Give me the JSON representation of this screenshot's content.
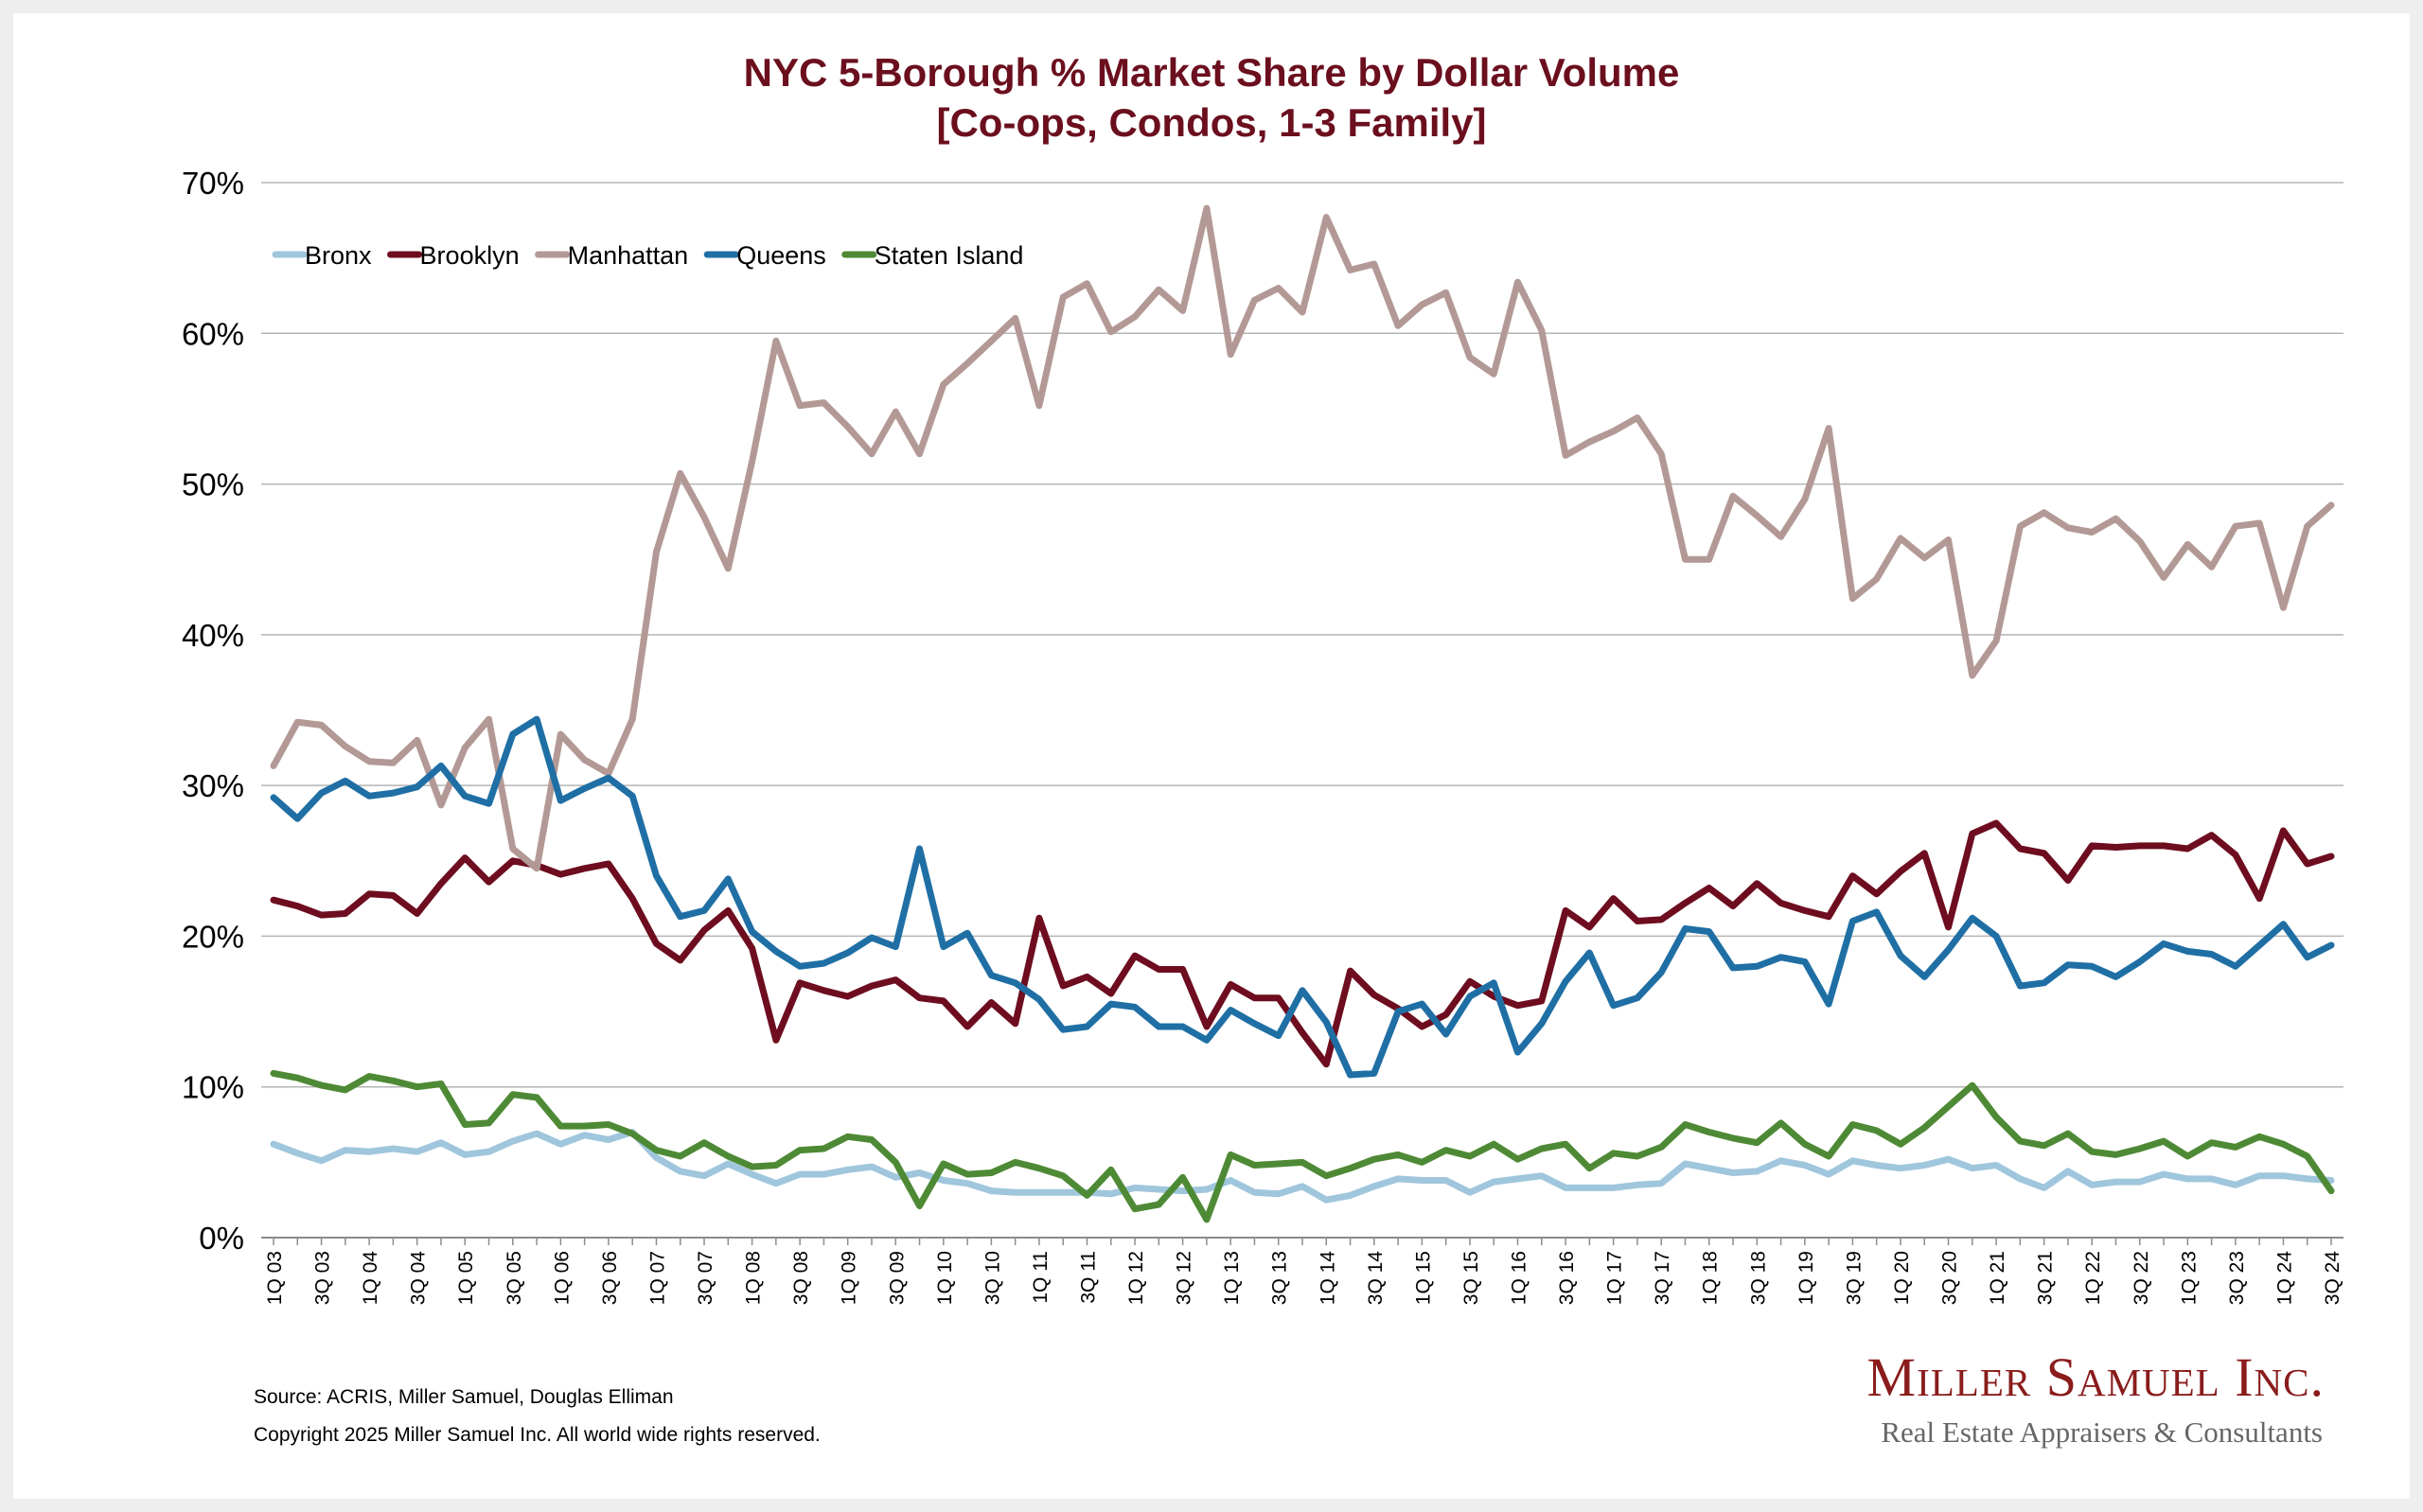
{
  "chart_data": {
    "type": "line",
    "title": [
      "NYC 5-Borough % Market Share by Dollar Volume",
      "[Co-ops, Condos, 1-3 Family]"
    ],
    "ylim": [
      0,
      70
    ],
    "yticks": [
      "0%",
      "10%",
      "20%",
      "30%",
      "40%",
      "50%",
      "60%",
      "70%"
    ],
    "grid": true,
    "legend_position": "top-left",
    "x": [
      "1Q 03",
      "2Q 03",
      "3Q 03",
      "4Q 03",
      "1Q 04",
      "2Q 04",
      "3Q 04",
      "4Q 04",
      "1Q 05",
      "2Q 05",
      "3Q 05",
      "4Q 05",
      "1Q 06",
      "2Q 06",
      "3Q 06",
      "4Q 06",
      "1Q 07",
      "2Q 07",
      "3Q 07",
      "4Q 07",
      "1Q 08",
      "2Q 08",
      "3Q 08",
      "4Q 08",
      "1Q 09",
      "2Q 09",
      "3Q 09",
      "4Q 09",
      "1Q 10",
      "2Q 10",
      "3Q 10",
      "4Q 10",
      "1Q 11",
      "2Q 11",
      "3Q 11",
      "4Q 11",
      "1Q 12",
      "2Q 12",
      "3Q 12",
      "4Q 12",
      "1Q 13",
      "2Q 13",
      "3Q 13",
      "4Q 13",
      "1Q 14",
      "2Q 14",
      "3Q 14",
      "4Q 14",
      "1Q 15",
      "2Q 15",
      "3Q 15",
      "4Q 15",
      "1Q 16",
      "2Q 16",
      "3Q 16",
      "4Q 16",
      "1Q 17",
      "2Q 17",
      "3Q 17",
      "4Q 17",
      "1Q 18",
      "2Q 18",
      "3Q 18",
      "4Q 18",
      "1Q 19",
      "2Q 19",
      "3Q 19",
      "4Q 19",
      "1Q 20",
      "2Q 20",
      "3Q 20",
      "4Q 20",
      "1Q 21",
      "2Q 21",
      "3Q 21",
      "4Q 21",
      "1Q 22",
      "2Q 22",
      "3Q 22",
      "4Q 22",
      "1Q 23",
      "2Q 23",
      "3Q 23",
      "4Q 23",
      "1Q 24",
      "2Q 24",
      "3Q 24"
    ],
    "xticks_shown": [
      "1Q 03",
      "3Q 03",
      "1Q 04",
      "3Q 04",
      "1Q 05",
      "3Q 05",
      "1Q 06",
      "3Q 06",
      "1Q 07",
      "3Q 07",
      "1Q 08",
      "3Q 08",
      "1Q 09",
      "3Q 09",
      "1Q 10",
      "3Q 10",
      "1Q 11",
      "3Q 11",
      "1Q 12",
      "3Q 12",
      "1Q 13",
      "3Q 13",
      "1Q 14",
      "3Q 14",
      "1Q 15",
      "3Q 15",
      "1Q 16",
      "3Q 16",
      "1Q 17",
      "3Q 17",
      "1Q 18",
      "3Q 18",
      "1Q 19",
      "3Q 19",
      "1Q 20",
      "3Q 20",
      "1Q 21",
      "3Q 21",
      "1Q 22",
      "3Q 22",
      "1Q 23",
      "3Q 23",
      "1Q 24",
      "3Q 24"
    ],
    "series": [
      {
        "name": "Bronx",
        "color": "#9fc6dc",
        "values": [
          6.2,
          5.6,
          5.1,
          5.8,
          5.7,
          5.9,
          5.7,
          6.3,
          5.5,
          5.7,
          6.4,
          6.9,
          6.2,
          6.8,
          6.5,
          7.0,
          5.3,
          4.4,
          4.1,
          4.9,
          4.2,
          3.6,
          4.2,
          4.2,
          4.5,
          4.7,
          4.0,
          4.3,
          3.8,
          3.6,
          3.1,
          3.0,
          3.0,
          3.0,
          3.0,
          2.9,
          3.3,
          3.2,
          3.1,
          3.2,
          3.8,
          3.0,
          2.9,
          3.4,
          2.5,
          2.8,
          3.4,
          3.9,
          3.8,
          3.8,
          3.0,
          3.7,
          3.9,
          4.1,
          3.3,
          3.3,
          3.3,
          3.5,
          3.6,
          4.9,
          4.6,
          4.3,
          4.4,
          5.1,
          4.8,
          4.2,
          5.1,
          4.8,
          4.6,
          4.8,
          5.2,
          4.6,
          4.8,
          3.9,
          3.3,
          4.4,
          3.5,
          3.7,
          3.7,
          4.2,
          3.9,
          3.9,
          3.5,
          4.1,
          4.1,
          3.9,
          3.8
        ]
      },
      {
        "name": "Brooklyn",
        "color": "#6d0d1f",
        "values": [
          22.4,
          22.0,
          21.4,
          21.5,
          22.8,
          22.7,
          21.5,
          23.5,
          25.2,
          23.6,
          25.0,
          24.7,
          24.1,
          24.5,
          24.8,
          22.5,
          19.5,
          18.4,
          20.4,
          21.7,
          19.2,
          13.1,
          16.9,
          16.4,
          16.0,
          16.7,
          17.1,
          15.9,
          15.7,
          14.0,
          15.6,
          14.2,
          21.2,
          16.7,
          17.3,
          16.2,
          18.7,
          17.8,
          17.8,
          14.0,
          16.8,
          15.9,
          15.9,
          13.6,
          11.5,
          17.7,
          16.1,
          15.2,
          14.0,
          14.8,
          17.0,
          16.0,
          15.4,
          15.7,
          21.7,
          20.6,
          22.5,
          21.0,
          21.1,
          22.2,
          23.2,
          22.0,
          23.5,
          22.2,
          21.7,
          21.3,
          24.0,
          22.8,
          24.3,
          25.5,
          20.6,
          26.8,
          27.5,
          25.8,
          25.5,
          23.7,
          26.0,
          25.9,
          26.0,
          26.0,
          25.8,
          26.7,
          25.4,
          22.5,
          27.0,
          24.8,
          25.3
        ]
      },
      {
        "name": "Manhattan",
        "color": "#b39996",
        "values": [
          31.3,
          34.2,
          34.0,
          32.6,
          31.6,
          31.5,
          33.0,
          28.7,
          32.5,
          34.4,
          25.8,
          24.5,
          33.4,
          31.7,
          30.8,
          34.4,
          45.5,
          50.7,
          47.8,
          44.4,
          51.5,
          59.5,
          55.2,
          55.4,
          53.8,
          52.0,
          54.8,
          52.0,
          56.6,
          58.0,
          59.5,
          61.0,
          55.2,
          62.4,
          63.3,
          60.1,
          61.1,
          62.9,
          61.5,
          68.3,
          58.6,
          62.2,
          63.0,
          61.4,
          67.7,
          64.2,
          64.6,
          60.5,
          61.9,
          62.7,
          58.4,
          57.3,
          63.4,
          60.2,
          51.9,
          52.8,
          53.5,
          54.4,
          52.0,
          45.0,
          45.0,
          49.2,
          47.9,
          46.5,
          49.0,
          53.7,
          42.4,
          43.7,
          46.4,
          45.1,
          46.3,
          37.3,
          39.6,
          47.2,
          48.1,
          47.1,
          46.8,
          47.7,
          46.2,
          43.8,
          46.0,
          44.5,
          47.2,
          47.4,
          41.8,
          47.2,
          48.6
        ]
      },
      {
        "name": "Queens",
        "color": "#1f6fa5",
        "values": [
          29.2,
          27.8,
          29.5,
          30.3,
          29.3,
          29.5,
          29.9,
          31.3,
          29.3,
          28.8,
          33.4,
          34.4,
          29.0,
          29.8,
          30.5,
          29.3,
          24.0,
          21.3,
          21.7,
          23.8,
          20.3,
          19.0,
          18.0,
          18.2,
          18.9,
          19.9,
          19.3,
          25.8,
          19.3,
          20.2,
          17.4,
          16.9,
          15.8,
          13.8,
          14.0,
          15.5,
          15.3,
          14.0,
          14.0,
          13.1,
          15.1,
          14.2,
          13.4,
          16.4,
          14.3,
          10.8,
          10.9,
          15.0,
          15.5,
          13.5,
          16.0,
          16.9,
          12.3,
          14.2,
          17.0,
          18.9,
          15.4,
          15.9,
          17.6,
          20.5,
          20.3,
          17.9,
          18.0,
          18.6,
          18.3,
          15.5,
          21.0,
          21.6,
          18.7,
          17.3,
          19.1,
          21.2,
          20.0,
          16.7,
          16.9,
          18.1,
          18.0,
          17.3,
          18.3,
          19.5,
          19.0,
          18.8,
          18.0,
          19.4,
          20.8,
          18.6,
          19.4
        ]
      },
      {
        "name": "Staten Island",
        "color": "#4e8a35",
        "values": [
          10.9,
          10.6,
          10.1,
          9.8,
          10.7,
          10.4,
          10.0,
          10.2,
          7.5,
          7.6,
          9.5,
          9.3,
          7.4,
          7.4,
          7.5,
          6.9,
          5.8,
          5.4,
          6.3,
          5.4,
          4.7,
          4.8,
          5.8,
          5.9,
          6.7,
          6.5,
          5.0,
          2.1,
          4.9,
          4.2,
          4.3,
          5.0,
          4.6,
          4.1,
          2.8,
          4.5,
          1.9,
          2.2,
          4.0,
          1.2,
          5.5,
          4.8,
          4.9,
          5.0,
          4.1,
          4.6,
          5.2,
          5.5,
          5.0,
          5.8,
          5.4,
          6.2,
          5.2,
          5.9,
          6.2,
          4.6,
          5.6,
          5.4,
          6.0,
          7.5,
          7.0,
          6.6,
          6.3,
          7.6,
          6.2,
          5.4,
          7.5,
          7.1,
          6.2,
          7.3,
          8.7,
          10.1,
          8.0,
          6.4,
          6.1,
          6.9,
          5.7,
          5.5,
          5.9,
          6.4,
          5.4,
          6.3,
          6.0,
          6.7,
          6.2,
          5.4,
          3.1
        ]
      }
    ]
  },
  "footer": {
    "source": "Source: ACRIS, Miller Samuel, Douglas Elliman",
    "copyright": "Copyright 2025 Miller Samuel Inc.  All world wide rights reserved."
  },
  "brand": {
    "name": "Miller Samuel Inc.",
    "tagline": "Real Estate Appraisers & Consultants"
  }
}
